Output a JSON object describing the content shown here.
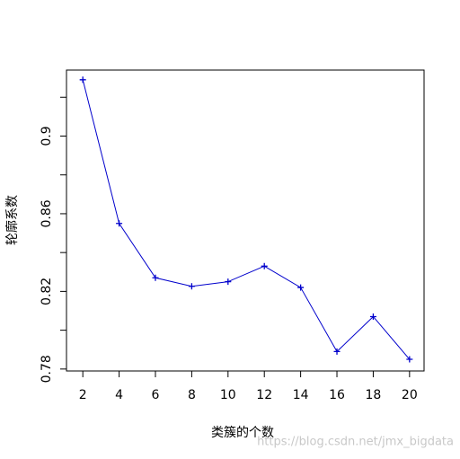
{
  "chart_data": {
    "type": "line",
    "x_label": "类簇的个数",
    "y_label": "轮廓系数",
    "x": [
      2,
      4,
      6,
      8,
      10,
      12,
      14,
      16,
      18,
      20
    ],
    "series": [
      {
        "color": "#0000cc",
        "values": [
          0.929,
          0.855,
          0.827,
          0.8226,
          0.825,
          0.833,
          0.822,
          0.789,
          0.807,
          0.785
        ]
      }
    ],
    "xlim": [
      1.1,
      20.8
    ],
    "ylim": [
      0.779,
      0.934
    ],
    "xticks": [
      2,
      4,
      6,
      8,
      10,
      12,
      14,
      16,
      18,
      20
    ],
    "yticks": [
      0.78,
      0.82,
      0.86,
      0.9
    ],
    "yticks_minor": [
      0.8,
      0.84,
      0.88,
      0.92
    ],
    "marker": "+",
    "grid": false,
    "watermark": "https://blog.csdn.net/jmx_bigdata"
  }
}
